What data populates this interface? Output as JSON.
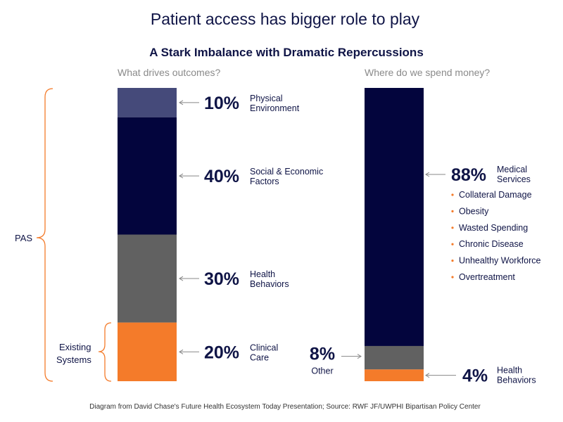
{
  "title": "Patient access has bigger role to play",
  "subtitle": "A Stark Imbalance with Dramatic Repercussions",
  "source": "Diagram from David Chase's Future Health Ecosystem Today Presentation;  Source: RWF JF/UWPHI Bipartisan Policy Center",
  "braces": {
    "pas": "PAS",
    "existing_line1": "Existing",
    "existing_line2": "Systems"
  },
  "colors": {
    "physical": "#454a7a",
    "social": "#03053d",
    "behaviors": "#616161",
    "clinical": "#f47b2a",
    "text": "#0f1446",
    "brace": "#f47b2a"
  },
  "chart_data": [
    {
      "type": "bar",
      "title": "What drives outcomes?",
      "stacked": true,
      "ylim": [
        0,
        100
      ],
      "segments": [
        {
          "pct_label": "10%",
          "value": 10,
          "label_line1": "Physical",
          "label_line2": "Environment",
          "color": "#454a7a"
        },
        {
          "pct_label": "40%",
          "value": 40,
          "label_line1": "Social & Economic",
          "label_line2": "Factors",
          "color": "#03053d"
        },
        {
          "pct_label": "30%",
          "value": 30,
          "label_line1": "Health",
          "label_line2": "Behaviors",
          "color": "#616161"
        },
        {
          "pct_label": "20%",
          "value": 20,
          "label_line1": "Clinical",
          "label_line2": "Care",
          "color": "#f47b2a"
        }
      ]
    },
    {
      "type": "bar",
      "title": "Where do we spend money?",
      "stacked": true,
      "ylim": [
        0,
        100
      ],
      "segments": [
        {
          "pct_label": "88%",
          "value": 88,
          "label_line1": "Medical",
          "label_line2": "Services",
          "color": "#03053d"
        },
        {
          "pct_label": "8%",
          "value": 8,
          "label_line1": "Other",
          "label_line2": "",
          "color": "#616161"
        },
        {
          "pct_label": "4%",
          "value": 4,
          "label_line1": "Health",
          "label_line2": "Behaviors",
          "color": "#f47b2a"
        }
      ],
      "medical_bullets": [
        "Collateral Damage",
        "Obesity",
        "Wasted Spending",
        "Chronic  Disease",
        "Unhealthy Workforce",
        "Overtreatment"
      ]
    }
  ]
}
